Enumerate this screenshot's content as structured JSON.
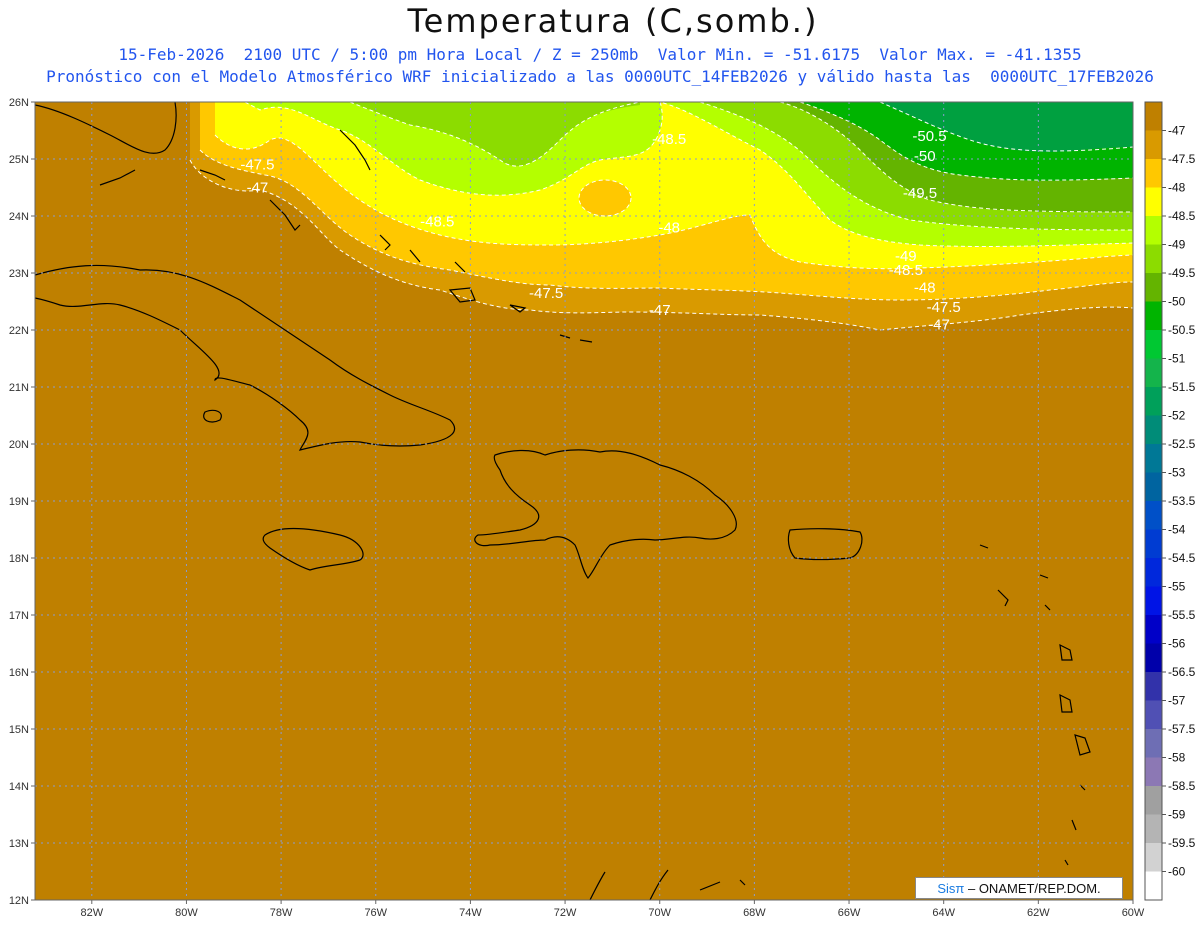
{
  "header": {
    "title": "Temperatura (C,somb.)",
    "line1": "15-Feb-2026  2100 UTC / 5:00 pm Hora Local / Z = 250mb  Valor Min. = -51.6175  Valor Max. = -41.1355",
    "line2": "Pronóstico con el Modelo Atmosférico WRF inicializado a las 0000UTC_14FEB2026 y válido hasta las  0000UTC_17FEB2026"
  },
  "lat_labels": [
    "26N",
    "25N",
    "24N",
    "23N",
    "22N",
    "21N",
    "20N",
    "19N",
    "18N",
    "17N",
    "16N",
    "15N",
    "14N",
    "13N",
    "12N"
  ],
  "lon_labels": [
    "82W",
    "80W",
    "78W",
    "76W",
    "74W",
    "72W",
    "70W",
    "68W",
    "66W",
    "64W",
    "62W",
    "60W"
  ],
  "contour_labels": [
    {
      "text": "-47.5",
      "lon": -78.5,
      "lat": 24.9
    },
    {
      "text": "-47",
      "lon": -78.5,
      "lat": 24.5
    },
    {
      "text": "-48.5",
      "lon": -74.7,
      "lat": 23.9
    },
    {
      "text": "-48.5",
      "lon": -69.8,
      "lat": 25.35
    },
    {
      "text": "-48",
      "lon": -69.8,
      "lat": 23.8
    },
    {
      "text": "-47.5",
      "lon": -72.4,
      "lat": 22.65
    },
    {
      "text": "-47",
      "lon": -70.0,
      "lat": 22.35
    },
    {
      "text": "-50.5",
      "lon": -64.3,
      "lat": 25.4
    },
    {
      "text": "-50",
      "lon": -64.4,
      "lat": 25.05
    },
    {
      "text": "-49.5",
      "lon": -64.5,
      "lat": 24.4
    },
    {
      "text": "-49",
      "lon": -64.8,
      "lat": 23.3
    },
    {
      "text": "-48.5",
      "lon": -64.8,
      "lat": 23.05
    },
    {
      "text": "-48",
      "lon": -64.4,
      "lat": 22.75
    },
    {
      "text": "-47.5",
      "lon": -64.0,
      "lat": 22.4
    },
    {
      "text": "-47",
      "lon": -64.1,
      "lat": 22.1
    }
  ],
  "colorbar": {
    "labels": [
      "-47",
      "-47.5",
      "-48",
      "-48.5",
      "-49",
      "-49.5",
      "-50",
      "-50.5",
      "-51",
      "-51.5",
      "-52",
      "-52.5",
      "-53",
      "-53.5",
      "-54",
      "-54.5",
      "-55",
      "-55.5",
      "-56",
      "-56.5",
      "-57",
      "-57.5",
      "-58",
      "-58.5",
      "-59",
      "-59.5",
      "-60"
    ],
    "colors": [
      "#bf8000",
      "#d99a00",
      "#ffc800",
      "#ffff00",
      "#b4ff00",
      "#8cdc00",
      "#64b400",
      "#00b400",
      "#00c832",
      "#14b44b",
      "#00a05a",
      "#008c78",
      "#007896",
      "#0064a0",
      "#0050c8",
      "#003cd2",
      "#0028dc",
      "#0014e6",
      "#0000c8",
      "#0000aa",
      "#3232aa",
      "#5050b4",
      "#6e6eb4",
      "#8c78b4",
      "#a0a0a0",
      "#b4b4b4",
      "#d2d2d2",
      "#ffffff"
    ]
  },
  "credit": {
    "brand": "Sisπ",
    "text": " – ONAMET/REP.DOM."
  }
}
